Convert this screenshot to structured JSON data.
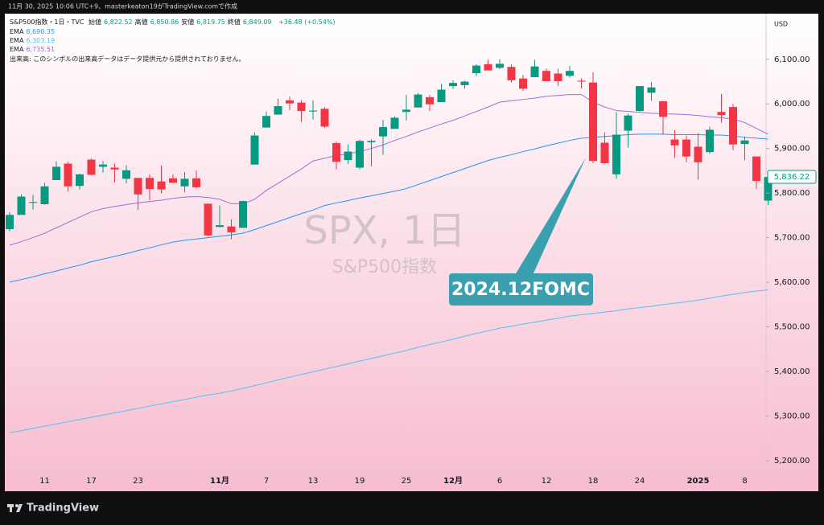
{
  "chart_data": {
    "type": "candlestick",
    "credit": "11月 30, 2025 10:06 UTC+9、masterkeaton19がTradingView.comで作成",
    "symbol": "S&P500指数・1日・TVC",
    "ohlc_legend": [
      {
        "label": "始値",
        "value": "6,822.52"
      },
      {
        "label": "高値",
        "value": "6,850.86"
      },
      {
        "label": "安値",
        "value": "6,819.75"
      },
      {
        "label": "終値",
        "value": "6,849.09"
      }
    ],
    "change": "+36.48 (+0.54%)",
    "volume_note": "出来高: このシンボルの出来高データはデータ提供元から提供されておりません。",
    "watermark": "SPX, 1日",
    "watermark_sub": "S&P500指数",
    "currency": "USD",
    "annotation": "2024.12FOMC",
    "brand": "TradingView",
    "up_color": "#089981",
    "down_color": "#f23645",
    "categories": [
      null,
      null,
      null,
      "11",
      null,
      null,
      null,
      "17",
      null,
      null,
      null,
      "23",
      null,
      null,
      null,
      null,
      null,
      null,
      "11月",
      null,
      null,
      null,
      "7",
      null,
      null,
      null,
      "13",
      null,
      null,
      null,
      "19",
      null,
      null,
      null,
      "25",
      null,
      null,
      null,
      "12月",
      null,
      null,
      null,
      "6",
      null,
      null,
      null,
      "12",
      null,
      null,
      null,
      "18",
      null,
      null,
      null,
      "24",
      null,
      null,
      null,
      null,
      "2025",
      null,
      null,
      null,
      "8",
      null,
      null
    ],
    "ohlc": [
      [
        5719,
        5757,
        5714,
        5751
      ],
      [
        5751,
        5797,
        5751,
        5792
      ],
      [
        5778,
        5796,
        5763,
        5780
      ],
      [
        5775,
        5823,
        5774,
        5815
      ],
      [
        5829,
        5871,
        5829,
        5859
      ],
      [
        5866,
        5870,
        5804,
        5815
      ],
      [
        5816,
        5843,
        5808,
        5842
      ],
      [
        5875,
        5878,
        5840,
        5841
      ],
      [
        5859,
        5872,
        5846,
        5864
      ],
      [
        5857,
        5866,
        5824,
        5853
      ],
      [
        5832,
        5863,
        5822,
        5851
      ],
      [
        5834,
        5834,
        5762,
        5797
      ],
      [
        5834,
        5842,
        5784,
        5809
      ],
      [
        5826,
        5862,
        5799,
        5808
      ],
      [
        5833,
        5842,
        5823,
        5823
      ],
      [
        5815,
        5847,
        5802,
        5832
      ],
      [
        5833,
        5850,
        5811,
        5813
      ],
      [
        5776,
        5777,
        5703,
        5705
      ],
      [
        5724,
        5772,
        5723,
        5728
      ],
      [
        5725,
        5741,
        5696,
        5712
      ],
      [
        5722,
        5783,
        5722,
        5782
      ],
      [
        5864,
        5936,
        5864,
        5929
      ],
      [
        5947,
        5983,
        5947,
        5973
      ],
      [
        5976,
        6012,
        5976,
        5995
      ],
      [
        6008,
        6017,
        5986,
        6001
      ],
      [
        6003,
        6009,
        5960,
        5984
      ],
      [
        5983,
        6008,
        5965,
        5985
      ],
      [
        5989,
        5993,
        5946,
        5949
      ],
      [
        5912,
        5915,
        5853,
        5870
      ],
      [
        5874,
        5909,
        5865,
        5893
      ],
      [
        5857,
        5920,
        5853,
        5917
      ],
      [
        5914,
        5920,
        5860,
        5917
      ],
      [
        5927,
        5964,
        5886,
        5948
      ],
      [
        5944,
        5972,
        5944,
        5969
      ],
      [
        5982,
        6020,
        5963,
        5987
      ],
      [
        5992,
        6025,
        5992,
        6021
      ],
      [
        6015,
        6020,
        5984,
        5999
      ],
      [
        6004,
        6045,
        6004,
        6032
      ],
      [
        6040,
        6053,
        6033,
        6047
      ],
      [
        6042,
        6052,
        6034,
        6050
      ],
      [
        6069,
        6089,
        6062,
        6086
      ],
      [
        6089,
        6099,
        6075,
        6075
      ],
      [
        6081,
        6100,
        6078,
        6090
      ],
      [
        6083,
        6089,
        6048,
        6053
      ],
      [
        6057,
        6065,
        6029,
        6034
      ],
      [
        6060,
        6099,
        6060,
        6084
      ],
      [
        6074,
        6079,
        6051,
        6051
      ],
      [
        6068,
        6079,
        6040,
        6051
      ],
      [
        6063,
        6085,
        6059,
        6074
      ],
      [
        6052,
        6057,
        6035,
        6050
      ],
      [
        6048,
        6071,
        5867,
        5872
      ],
      [
        5913,
        5936,
        5866,
        5867
      ],
      [
        5842,
        5982,
        5832,
        5931
      ],
      [
        5940,
        5978,
        5902,
        5974
      ],
      [
        5984,
        6040,
        5983,
        6040
      ],
      [
        6025,
        6049,
        6007,
        6037
      ],
      [
        6006,
        6006,
        5932,
        5971
      ],
      [
        5920,
        5941,
        5879,
        5907
      ],
      [
        5920,
        5929,
        5869,
        5882
      ],
      [
        5904,
        5935,
        5830,
        5869
      ],
      [
        5892,
        5949,
        5888,
        5942
      ],
      [
        5982,
        6022,
        5958,
        5975
      ],
      [
        5993,
        6000,
        5896,
        5909
      ],
      [
        5910,
        5927,
        5874,
        5918
      ],
      [
        5882,
        5882,
        5809,
        5827
      ],
      [
        5783,
        5839,
        5773,
        5836
      ]
    ],
    "series": [
      {
        "name": "EMA",
        "color": "#2196f3",
        "value_label": "6,690.35",
        "values": [
          5600,
          5606,
          5612,
          5619,
          5625,
          5632,
          5638,
          5646,
          5652,
          5658,
          5664,
          5671,
          5677,
          5684,
          5690,
          5694,
          5697,
          5700,
          5703,
          5706,
          5710,
          5718,
          5727,
          5736,
          5745,
          5754,
          5762,
          5772,
          5778,
          5783,
          5789,
          5794,
          5799,
          5804,
          5810,
          5819,
          5828,
          5837,
          5846,
          5855,
          5864,
          5873,
          5880,
          5886,
          5893,
          5899,
          5906,
          5912,
          5918,
          5923,
          5925,
          5927,
          5929,
          5931,
          5932,
          5932,
          5932,
          5931,
          5931,
          5931,
          5930,
          5930,
          5928,
          5925,
          5923,
          5921
        ]
      },
      {
        "name": "EMA",
        "color": "#4fc3f7",
        "value_label": "6,303.19",
        "values": [
          5262,
          5267,
          5272,
          5277,
          5282,
          5287,
          5292,
          5297,
          5302,
          5307,
          5312,
          5317,
          5322,
          5327,
          5332,
          5337,
          5342,
          5347,
          5351,
          5356,
          5362,
          5368,
          5374,
          5381,
          5387,
          5393,
          5399,
          5405,
          5411,
          5417,
          5423,
          5429,
          5435,
          5441,
          5447,
          5454,
          5460,
          5466,
          5472,
          5479,
          5485,
          5491,
          5497,
          5501,
          5506,
          5510,
          5515,
          5519,
          5524,
          5527,
          5530,
          5533,
          5536,
          5540,
          5543,
          5546,
          5550,
          5553,
          5556,
          5560,
          5564,
          5569,
          5573,
          5577,
          5580,
          5583
        ]
      },
      {
        "name": "EMA",
        "color": "#9c6fd6",
        "value_label": "6,735.51",
        "values": [
          5683,
          5691,
          5700,
          5710,
          5722,
          5734,
          5746,
          5758,
          5765,
          5770,
          5774,
          5778,
          5781,
          5784,
          5788,
          5791,
          5792,
          5790,
          5786,
          5776,
          5776,
          5786,
          5806,
          5822,
          5838,
          5854,
          5872,
          5878,
          5884,
          5888,
          5893,
          5900,
          5908,
          5918,
          5927,
          5937,
          5946,
          5955,
          5963,
          5973,
          5983,
          5993,
          6004,
          6007,
          6010,
          6013,
          6017,
          6019,
          6021,
          6021,
          6004,
          5993,
          5985,
          5983,
          5981,
          5979,
          5978,
          5977,
          5976,
          5974,
          5971,
          5969,
          5966,
          5958,
          5945,
          5932
        ]
      }
    ],
    "last_price": {
      "value": 5836.22,
      "label": "5,836.22"
    },
    "ylim": [
      5178,
      6197
    ],
    "yticks": [
      {
        "value": 5200,
        "label": "5,200.00"
      },
      {
        "value": 5300,
        "label": "5,300.00"
      },
      {
        "value": 5400,
        "label": "5,400.00"
      },
      {
        "value": 5500,
        "label": "5,500.00"
      },
      {
        "value": 5600,
        "label": "5,600.00"
      },
      {
        "value": 5700,
        "label": "5,700.00"
      },
      {
        "value": 5800,
        "label": "5,800.00"
      },
      {
        "value": 5900,
        "label": "5,900.00"
      },
      {
        "value": 6000,
        "label": "6,000.00"
      },
      {
        "value": 6100,
        "label": "6,100.00"
      }
    ]
  }
}
